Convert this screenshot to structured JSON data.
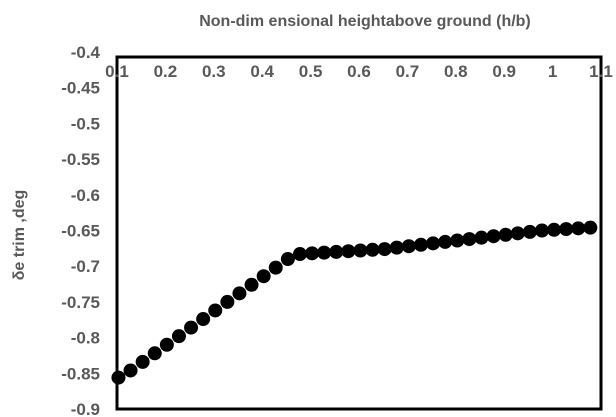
{
  "chart_data": {
    "type": "scatter",
    "title": "",
    "xlabel": "Non-dim ensional heightabove ground (h/b)",
    "ylabel": "δe trim ,deg",
    "xlim": [
      0.1,
      1.1
    ],
    "ylim": [
      -0.9,
      -0.4
    ],
    "x_axis_position": "top",
    "y_axis_inverted": true,
    "grid": false,
    "legend": "none",
    "marker_color": "#000000",
    "x_ticks": [
      "0.1",
      "0.2",
      "0.3",
      "0.4",
      "0.5",
      "0.6",
      "0.7",
      "0.8",
      "0.9",
      "1",
      "1.1"
    ],
    "y_ticks": [
      "-0.4",
      "-0.45",
      "-0.5",
      "-0.55",
      "-0.6",
      "-0.65",
      "-0.7",
      "-0.75",
      "-0.8",
      "-0.85",
      "-0.9"
    ],
    "series": [
      {
        "x": [
          0.103,
          0.128,
          0.153,
          0.178,
          0.203,
          0.228,
          0.253,
          0.278,
          0.303,
          0.328,
          0.353,
          0.378,
          0.403,
          0.428,
          0.453,
          0.478,
          0.503,
          0.528,
          0.553,
          0.578,
          0.603,
          0.628,
          0.653,
          0.678,
          0.703,
          0.728,
          0.753,
          0.778,
          0.803,
          0.828,
          0.853,
          0.878,
          0.903,
          0.928,
          0.953,
          0.978,
          1.003,
          1.028,
          1.053,
          1.078
        ],
        "y": [
          -0.856,
          -0.846,
          -0.834,
          -0.822,
          -0.81,
          -0.798,
          -0.786,
          -0.774,
          -0.762,
          -0.75,
          -0.738,
          -0.726,
          -0.714,
          -0.702,
          -0.69,
          -0.683,
          -0.682,
          -0.681,
          -0.68,
          -0.679,
          -0.678,
          -0.677,
          -0.676,
          -0.674,
          -0.672,
          -0.67,
          -0.668,
          -0.666,
          -0.664,
          -0.662,
          -0.66,
          -0.658,
          -0.656,
          -0.654,
          -0.652,
          -0.65,
          -0.649,
          -0.648,
          -0.647,
          -0.646
        ]
      }
    ]
  }
}
